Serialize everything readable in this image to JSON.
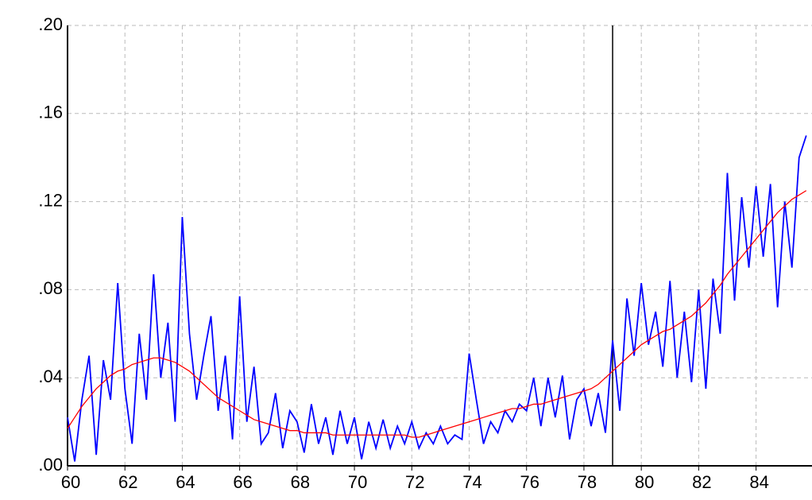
{
  "chart_data": {
    "type": "line",
    "x": [
      60,
      60.25,
      60.5,
      60.75,
      61,
      61.25,
      61.5,
      61.75,
      62,
      62.25,
      62.5,
      62.75,
      63,
      63.25,
      63.5,
      63.75,
      64,
      64.25,
      64.5,
      64.75,
      65,
      65.25,
      65.5,
      65.75,
      66,
      66.25,
      66.5,
      66.75,
      67,
      67.25,
      67.5,
      67.75,
      68,
      68.25,
      68.5,
      68.75,
      69,
      69.25,
      69.5,
      69.75,
      70,
      70.25,
      70.5,
      70.75,
      71,
      71.25,
      71.5,
      71.75,
      72,
      72.25,
      72.5,
      72.75,
      73,
      73.25,
      73.5,
      73.75,
      74,
      74.25,
      74.5,
      74.75,
      75,
      75.25,
      75.5,
      75.75,
      76,
      76.25,
      76.5,
      76.75,
      77,
      77.25,
      77.5,
      77.75,
      78,
      78.25,
      78.5,
      78.75,
      79,
      79.25,
      79.5,
      79.75,
      80,
      80.25,
      80.5,
      80.75,
      81,
      81.25,
      81.5,
      81.75,
      82,
      82.25,
      82.5,
      82.75,
      83,
      83.25,
      83.5,
      83.75,
      84,
      84.25,
      84.5,
      84.75,
      85,
      85.25,
      85.5,
      85.75
    ],
    "series": [
      {
        "color": "#0000ff",
        "values": [
          0.022,
          0.002,
          0.03,
          0.05,
          0.005,
          0.048,
          0.03,
          0.083,
          0.035,
          0.01,
          0.06,
          0.03,
          0.087,
          0.04,
          0.065,
          0.02,
          0.113,
          0.06,
          0.03,
          0.05,
          0.068,
          0.025,
          0.05,
          0.012,
          0.077,
          0.02,
          0.045,
          0.01,
          0.015,
          0.033,
          0.008,
          0.025,
          0.02,
          0.006,
          0.028,
          0.01,
          0.022,
          0.005,
          0.025,
          0.01,
          0.022,
          0.003,
          0.02,
          0.008,
          0.021,
          0.008,
          0.018,
          0.01,
          0.02,
          0.008,
          0.015,
          0.01,
          0.018,
          0.01,
          0.014,
          0.012,
          0.051,
          0.03,
          0.01,
          0.02,
          0.015,
          0.025,
          0.02,
          0.028,
          0.025,
          0.04,
          0.018,
          0.04,
          0.022,
          0.041,
          0.012,
          0.03,
          0.035,
          0.018,
          0.033,
          0.015,
          0.057,
          0.025,
          0.076,
          0.05,
          0.083,
          0.055,
          0.07,
          0.045,
          0.084,
          0.04,
          0.07,
          0.038,
          0.08,
          0.035,
          0.085,
          0.06,
          0.133,
          0.075,
          0.122,
          0.09,
          0.127,
          0.095,
          0.128,
          0.072,
          0.12,
          0.09,
          0.14,
          0.15
        ]
      },
      {
        "color": "#ff0000",
        "values": [
          0.017,
          0.022,
          0.027,
          0.031,
          0.035,
          0.038,
          0.041,
          0.043,
          0.044,
          0.046,
          0.047,
          0.048,
          0.049,
          0.049,
          0.048,
          0.047,
          0.045,
          0.043,
          0.04,
          0.037,
          0.034,
          0.031,
          0.029,
          0.027,
          0.025,
          0.023,
          0.021,
          0.02,
          0.019,
          0.018,
          0.017,
          0.016,
          0.016,
          0.015,
          0.015,
          0.015,
          0.015,
          0.014,
          0.014,
          0.014,
          0.014,
          0.014,
          0.014,
          0.014,
          0.014,
          0.014,
          0.014,
          0.014,
          0.013,
          0.013,
          0.014,
          0.015,
          0.016,
          0.017,
          0.018,
          0.019,
          0.02,
          0.021,
          0.022,
          0.023,
          0.024,
          0.025,
          0.026,
          0.026,
          0.027,
          0.028,
          0.028,
          0.029,
          0.03,
          0.031,
          0.032,
          0.033,
          0.034,
          0.035,
          0.037,
          0.04,
          0.043,
          0.046,
          0.049,
          0.052,
          0.055,
          0.057,
          0.059,
          0.061,
          0.062,
          0.064,
          0.066,
          0.068,
          0.071,
          0.074,
          0.078,
          0.082,
          0.087,
          0.091,
          0.095,
          0.099,
          0.103,
          0.107,
          0.111,
          0.115,
          0.118,
          0.121,
          0.123,
          0.125
        ]
      }
    ],
    "xlim": [
      60,
      85.95
    ],
    "xticks": [
      60,
      62,
      64,
      66,
      68,
      70,
      72,
      74,
      76,
      78,
      80,
      82,
      84
    ],
    "ylim": [
      0,
      0.2
    ],
    "yticks": [
      {
        "value": 0,
        "label": ".00"
      },
      {
        "value": 0.04,
        "label": ".04"
      },
      {
        "value": 0.08,
        "label": ".08"
      },
      {
        "value": 0.12,
        "label": ".12"
      },
      {
        "value": 0.16,
        "label": ".16"
      },
      {
        "value": 0.2,
        "label": ".20"
      }
    ],
    "grid": true,
    "vline": 79
  }
}
